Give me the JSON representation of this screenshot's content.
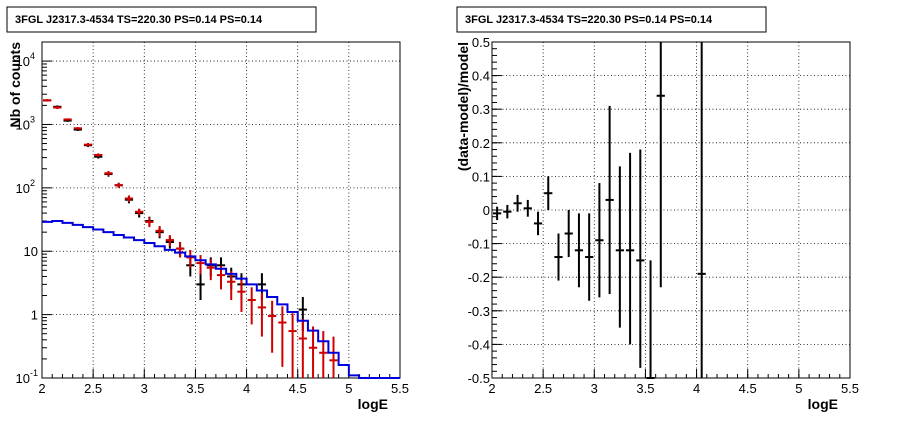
{
  "chart_data": [
    {
      "type": "line",
      "title": "3FGL J2317.3-4534 TS=220.30 PS=0.14 PS=0.14",
      "xlabel": "logE",
      "ylabel": "Nb of counts",
      "xlim": [
        2,
        5.5
      ],
      "ylim": [
        0.1,
        20000
      ],
      "yscale": "log",
      "grid": true,
      "x_ticks": [
        "2",
        "2.5",
        "3",
        "3.5",
        "4",
        "4.5",
        "5",
        "5.5"
      ],
      "y_ticks": [
        {
          "value": 0.1,
          "label": "10",
          "sup": "-1"
        },
        {
          "value": 1,
          "label": "1",
          "sup": ""
        },
        {
          "value": 10,
          "label": "10",
          "sup": ""
        },
        {
          "value": 100,
          "label": "10",
          "sup": "2"
        },
        {
          "value": 1000,
          "label": "10",
          "sup": "3"
        },
        {
          "value": 10000,
          "label": "10",
          "sup": "4"
        }
      ],
      "series": [
        {
          "kind": "points",
          "color": "#000000",
          "x": [
            2.05,
            2.15,
            2.25,
            2.35,
            2.45,
            2.55,
            2.65,
            2.75,
            2.85,
            2.95,
            3.05,
            3.15,
            3.25,
            3.35,
            3.45,
            3.55,
            3.65,
            3.75,
            3.85,
            3.95,
            4.15,
            4.55
          ],
          "y": [
            2400,
            1900,
            1150,
            830,
            470,
            310,
            165,
            110,
            65,
            40,
            30,
            20,
            14,
            11,
            6,
            3,
            6,
            6,
            4,
            3,
            3,
            1.2
          ],
          "ylo": [
            2300,
            1800,
            1100,
            790,
            440,
            290,
            150,
            100,
            57,
            34,
            25,
            16,
            11,
            8,
            4,
            1.7,
            4,
            4,
            2.5,
            1.7,
            1.7,
            0.55
          ],
          "yhi": [
            2500,
            2000,
            1200,
            870,
            500,
            330,
            180,
            120,
            73,
            46,
            35,
            24,
            17,
            14,
            8,
            4.5,
            8,
            8,
            5.5,
            4.5,
            4.5,
            1.9
          ]
        },
        {
          "kind": "points",
          "color": "#d00000",
          "x": [
            2.05,
            2.15,
            2.25,
            2.35,
            2.45,
            2.55,
            2.65,
            2.75,
            2.85,
            2.95,
            3.05,
            3.15,
            3.25,
            3.35,
            3.45,
            3.55,
            3.65,
            3.75,
            3.85,
            3.95,
            4.05,
            4.15,
            4.25,
            4.35,
            4.45,
            4.55,
            4.65,
            4.75,
            4.85
          ],
          "y": [
            2400,
            1850,
            1200,
            870,
            480,
            330,
            170,
            110,
            68,
            42,
            29,
            21,
            15,
            11,
            8,
            6.5,
            5.5,
            4.2,
            3.3,
            2.3,
            1.7,
            1.3,
            0.95,
            0.75,
            0.55,
            0.42,
            0.3,
            0.25,
            0.19
          ],
          "ylo": [
            2300,
            1750,
            1150,
            830,
            450,
            310,
            155,
            100,
            60,
            37,
            24,
            17,
            12,
            8,
            5.5,
            4.3,
            3.5,
            2.5,
            1.7,
            1.1,
            0.7,
            0.45,
            0.25,
            0.15,
            0.1,
            0.1,
            0.1,
            0.1,
            0.1
          ],
          "yhi": [
            2500,
            1950,
            1250,
            910,
            510,
            350,
            185,
            120,
            76,
            47,
            34,
            25,
            18,
            14,
            10.5,
            8.7,
            7.5,
            5.9,
            4.9,
            3.5,
            2.7,
            2.2,
            1.65,
            1.35,
            1.05,
            0.85,
            0.65,
            0.55,
            0.45
          ]
        },
        {
          "kind": "step",
          "color": "#0000dd",
          "edges": [
            2.0,
            2.1,
            2.2,
            2.3,
            2.4,
            2.5,
            2.6,
            2.7,
            2.8,
            2.9,
            3.0,
            3.1,
            3.2,
            3.3,
            3.4,
            3.5,
            3.6,
            3.7,
            3.8,
            3.9,
            4.0,
            4.1,
            4.2,
            4.3,
            4.4,
            4.5,
            4.6,
            4.7,
            4.8,
            4.9,
            5.0,
            5.1,
            5.2,
            5.3,
            5.4,
            5.5
          ],
          "values": [
            29,
            30,
            28,
            26,
            24,
            22,
            20,
            18,
            16.5,
            15,
            13.5,
            12,
            10.5,
            9.5,
            8.3,
            7.2,
            6.2,
            5.3,
            4.4,
            3.7,
            3.0,
            2.4,
            1.9,
            1.45,
            1.1,
            0.8,
            0.56,
            0.38,
            0.25,
            0.16,
            0.11,
            0.1,
            0.1,
            0.1,
            0.1
          ]
        }
      ]
    },
    {
      "type": "scatter",
      "title": "3FGL J2317.3-4534 TS=220.30 PS=0.14 PS=0.14",
      "xlabel": "logE",
      "ylabel": "(data-model)/model",
      "xlim": [
        2,
        5.5
      ],
      "ylim": [
        -0.5,
        0.5
      ],
      "grid": true,
      "x_ticks": [
        "2",
        "2.5",
        "3",
        "3.5",
        "4",
        "4.5",
        "5",
        "5.5"
      ],
      "y_ticks": [
        "-0.5",
        "-0.4",
        "-0.3",
        "-0.2",
        "-0.1",
        "0",
        "0.1",
        "0.2",
        "0.3",
        "0.4",
        "0.5"
      ],
      "series": [
        {
          "color": "#000000",
          "x": [
            2.05,
            2.15,
            2.25,
            2.35,
            2.45,
            2.55,
            2.65,
            2.75,
            2.85,
            2.95,
            3.05,
            3.15,
            3.25,
            3.35,
            3.45,
            3.55,
            3.65,
            4.05
          ],
          "y": [
            -0.01,
            -0.005,
            0.02,
            0.005,
            -0.04,
            0.05,
            -0.14,
            -0.07,
            -0.12,
            -0.14,
            -0.09,
            0.03,
            -0.12,
            -0.12,
            -0.15,
            -0.5,
            0.34,
            -0.19
          ],
          "ylo": [
            -0.03,
            -0.025,
            -0.005,
            -0.02,
            -0.075,
            0.0,
            -0.21,
            -0.14,
            -0.23,
            -0.27,
            -0.26,
            -0.25,
            -0.35,
            -0.4,
            -0.47,
            -0.5,
            -0.23,
            -0.5
          ],
          "yhi": [
            0.01,
            0.015,
            0.045,
            0.03,
            -0.005,
            0.1,
            -0.07,
            0.0,
            -0.01,
            -0.01,
            0.08,
            0.31,
            0.13,
            0.17,
            0.18,
            -0.15,
            0.5,
            0.5
          ]
        }
      ]
    }
  ]
}
